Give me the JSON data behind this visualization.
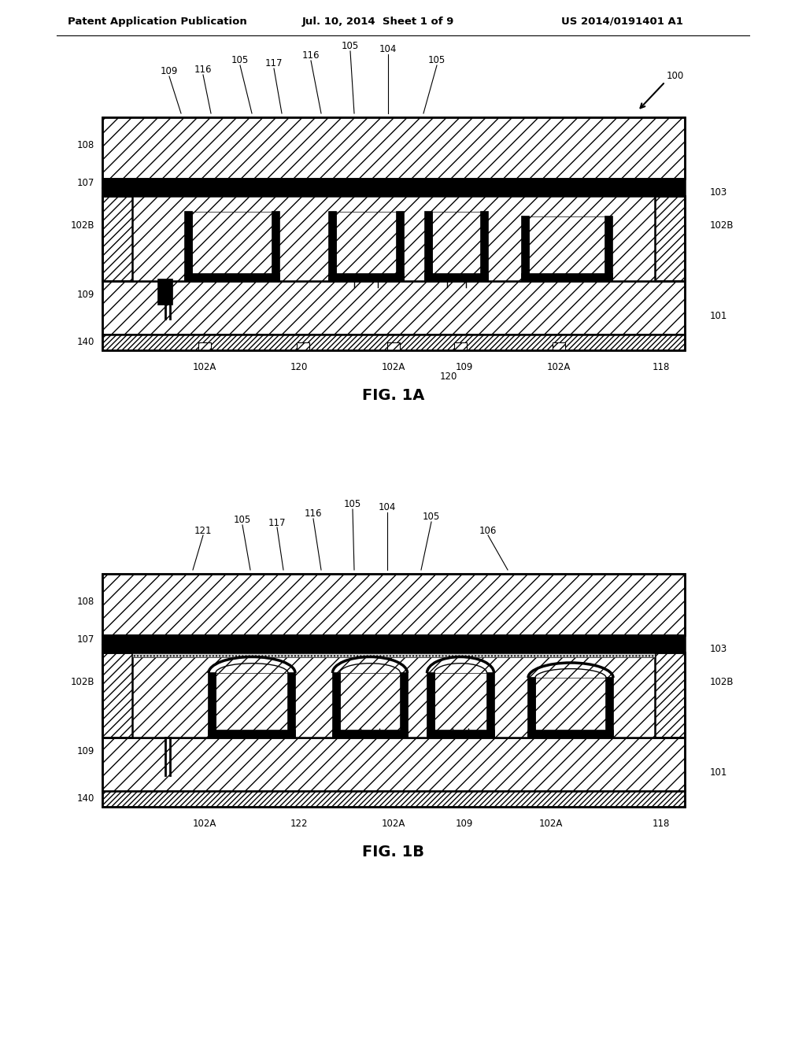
{
  "header_left": "Patent Application Publication",
  "header_mid": "Jul. 10, 2014  Sheet 1 of 9",
  "header_right": "US 2014/0191401 A1",
  "fig1a_label": "FIG. 1A",
  "fig1b_label": "FIG. 1B",
  "bg_color": "#ffffff",
  "line_color": "#000000",
  "ref_100": "100",
  "ref_101": "101",
  "ref_102a": "102A",
  "ref_102b": "102B",
  "ref_103": "103",
  "ref_104": "104",
  "ref_105": "105",
  "ref_106": "106",
  "ref_107": "107",
  "ref_108": "108",
  "ref_109": "109",
  "ref_116": "116",
  "ref_117": "117",
  "ref_118": "118",
  "ref_120": "120",
  "ref_121": "121",
  "ref_122": "122",
  "ref_140": "140",
  "font_size_header": 9.5,
  "font_size_ref": 8.5,
  "font_size_fig": 14
}
